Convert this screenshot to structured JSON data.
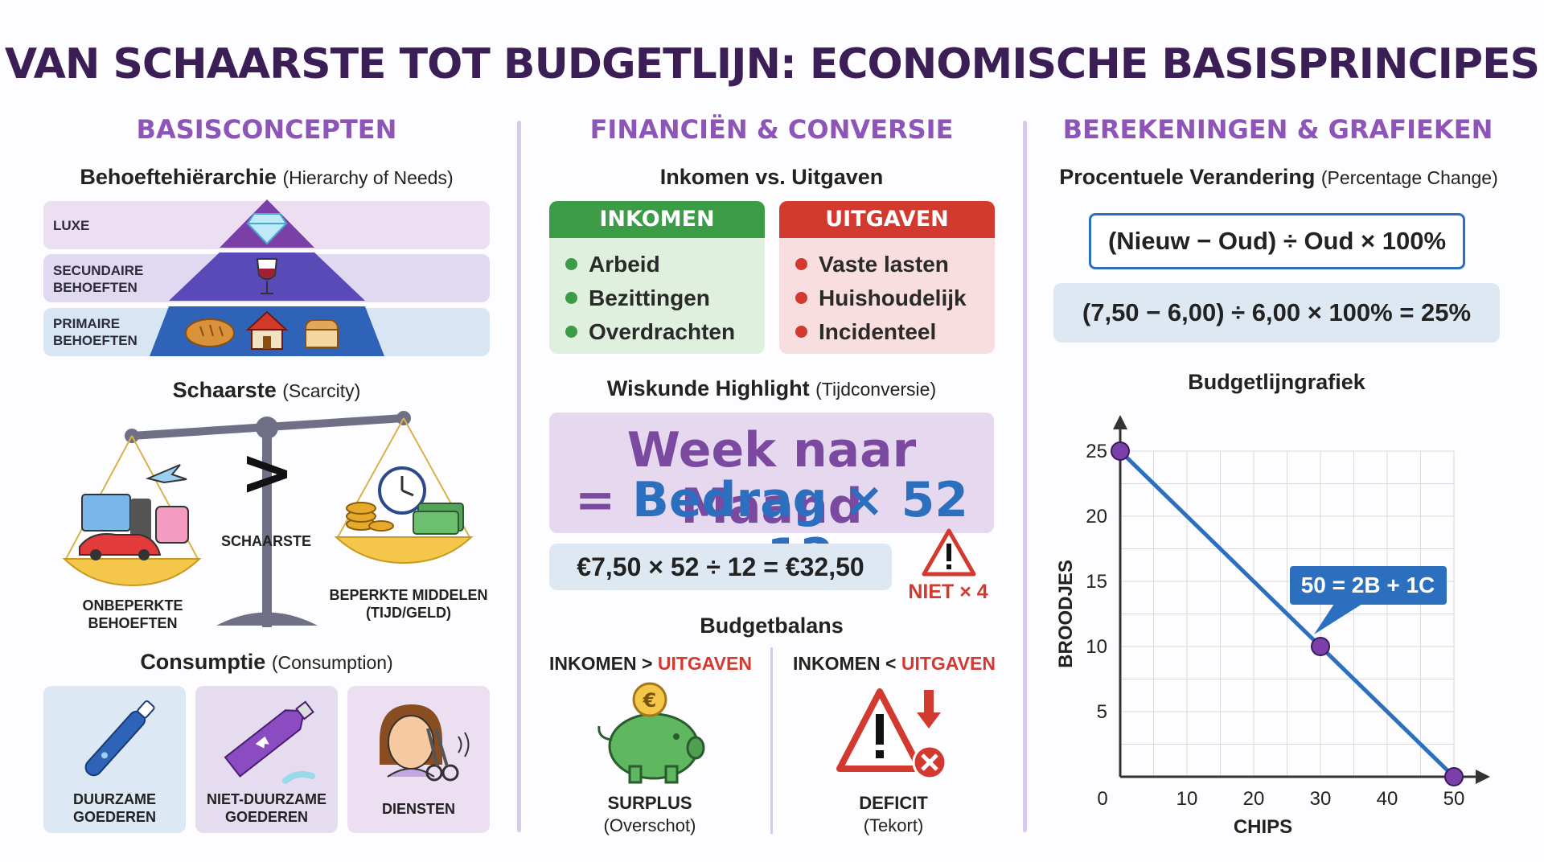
{
  "title": "VAN SCHAARSTE TOT BUDGETLIJN: ECONOMISCHE BASISPRINCIPES",
  "columns": {
    "left": {
      "heading": "BASISCONCEPTEN",
      "needs": {
        "title": "Behoeftehiërarchie",
        "title_en": "(Hierarchy of Needs)",
        "levels": [
          "LUXE",
          "SECUNDAIRE",
          "BEHOEFTEN",
          "PRIMAIRE",
          "BEHOEFTEN"
        ]
      },
      "scarcity": {
        "title": "Schaarste",
        "title_en": "(Scarcity)",
        "center_label": "SCHAARSTE",
        "left_caption_1": "ONBEPERKTE",
        "left_caption_2": "BEHOEFTEN",
        "right_caption_1": "BEPERKTE MIDDELEN",
        "right_caption_2": "(TIJD/GELD)"
      },
      "consumption": {
        "title": "Consumptie",
        "title_en": "(Consumption)",
        "cards": [
          {
            "line1": "DUURZAME",
            "line2": "GOEDEREN"
          },
          {
            "line1": "NIET-DUURZAME",
            "line2": "GOEDEREN"
          },
          {
            "line1": "DIENSTEN",
            "line2": ""
          }
        ]
      }
    },
    "middle": {
      "heading": "FINANCIËN & CONVERSIE",
      "io_title": "Inkomen vs. Uitgaven",
      "income": {
        "head": "INKOMEN",
        "items": [
          "Arbeid",
          "Bezittingen",
          "Overdrachten"
        ],
        "color": "#3c9b47"
      },
      "expenses": {
        "head": "UITGAVEN",
        "items": [
          "Vaste lasten",
          "Huishoudelijk",
          "Incidenteel"
        ],
        "color": "#d33a2f"
      },
      "math": {
        "title": "Wiskunde Highlight",
        "title_paren": "(Tijdconversie)",
        "line1": "Week naar Maand",
        "line2_eq": "=",
        "line2": "Bedrag × 52 ÷ 12",
        "example": "€7,50 × 52 ÷ 12 = €32,50",
        "warning": "NIET × 4"
      },
      "balance": {
        "title": "Budgetbalans",
        "left_a": "INKOMEN > ",
        "left_b": "UITGAVEN",
        "left_cap1": "SURPLUS",
        "left_cap2": "(Overschot)",
        "right_a": "INKOMEN < ",
        "right_b": "UITGAVEN",
        "right_cap1": "DEFICIT",
        "right_cap2": "(Tekort)"
      }
    },
    "right": {
      "heading": "BEREKENINGEN & GRAFIEKEN",
      "pct_title": "Procentuele Verandering",
      "pct_title_en": "(Percentage Change)",
      "formula": "(Nieuw − Oud) ÷ Oud × 100%",
      "example": "(7,50 − 6,00) ÷ 6,00 × 100% = 25%",
      "chart_title": "Budgetlijngrafiek"
    }
  },
  "chart_data": {
    "type": "line",
    "title": "Budgetlijngrafiek",
    "xlabel": "CHIPS",
    "ylabel": "BROODJES",
    "xlim": [
      0,
      50
    ],
    "ylim": [
      0,
      25
    ],
    "xticks": [
      0,
      10,
      20,
      30,
      40,
      50
    ],
    "yticks": [
      5,
      10,
      15,
      20,
      25
    ],
    "grid": true,
    "series": [
      {
        "x": [
          0,
          30,
          50
        ],
        "y": [
          25,
          10,
          0
        ]
      }
    ],
    "marked_points": [
      {
        "x": 0,
        "y": 25
      },
      {
        "x": 30,
        "y": 10
      },
      {
        "x": 50,
        "y": 0
      }
    ],
    "annotation": "50 = 2B + 1C",
    "line_color": "#2c6fbf",
    "point_color": "#7b3fa8"
  }
}
